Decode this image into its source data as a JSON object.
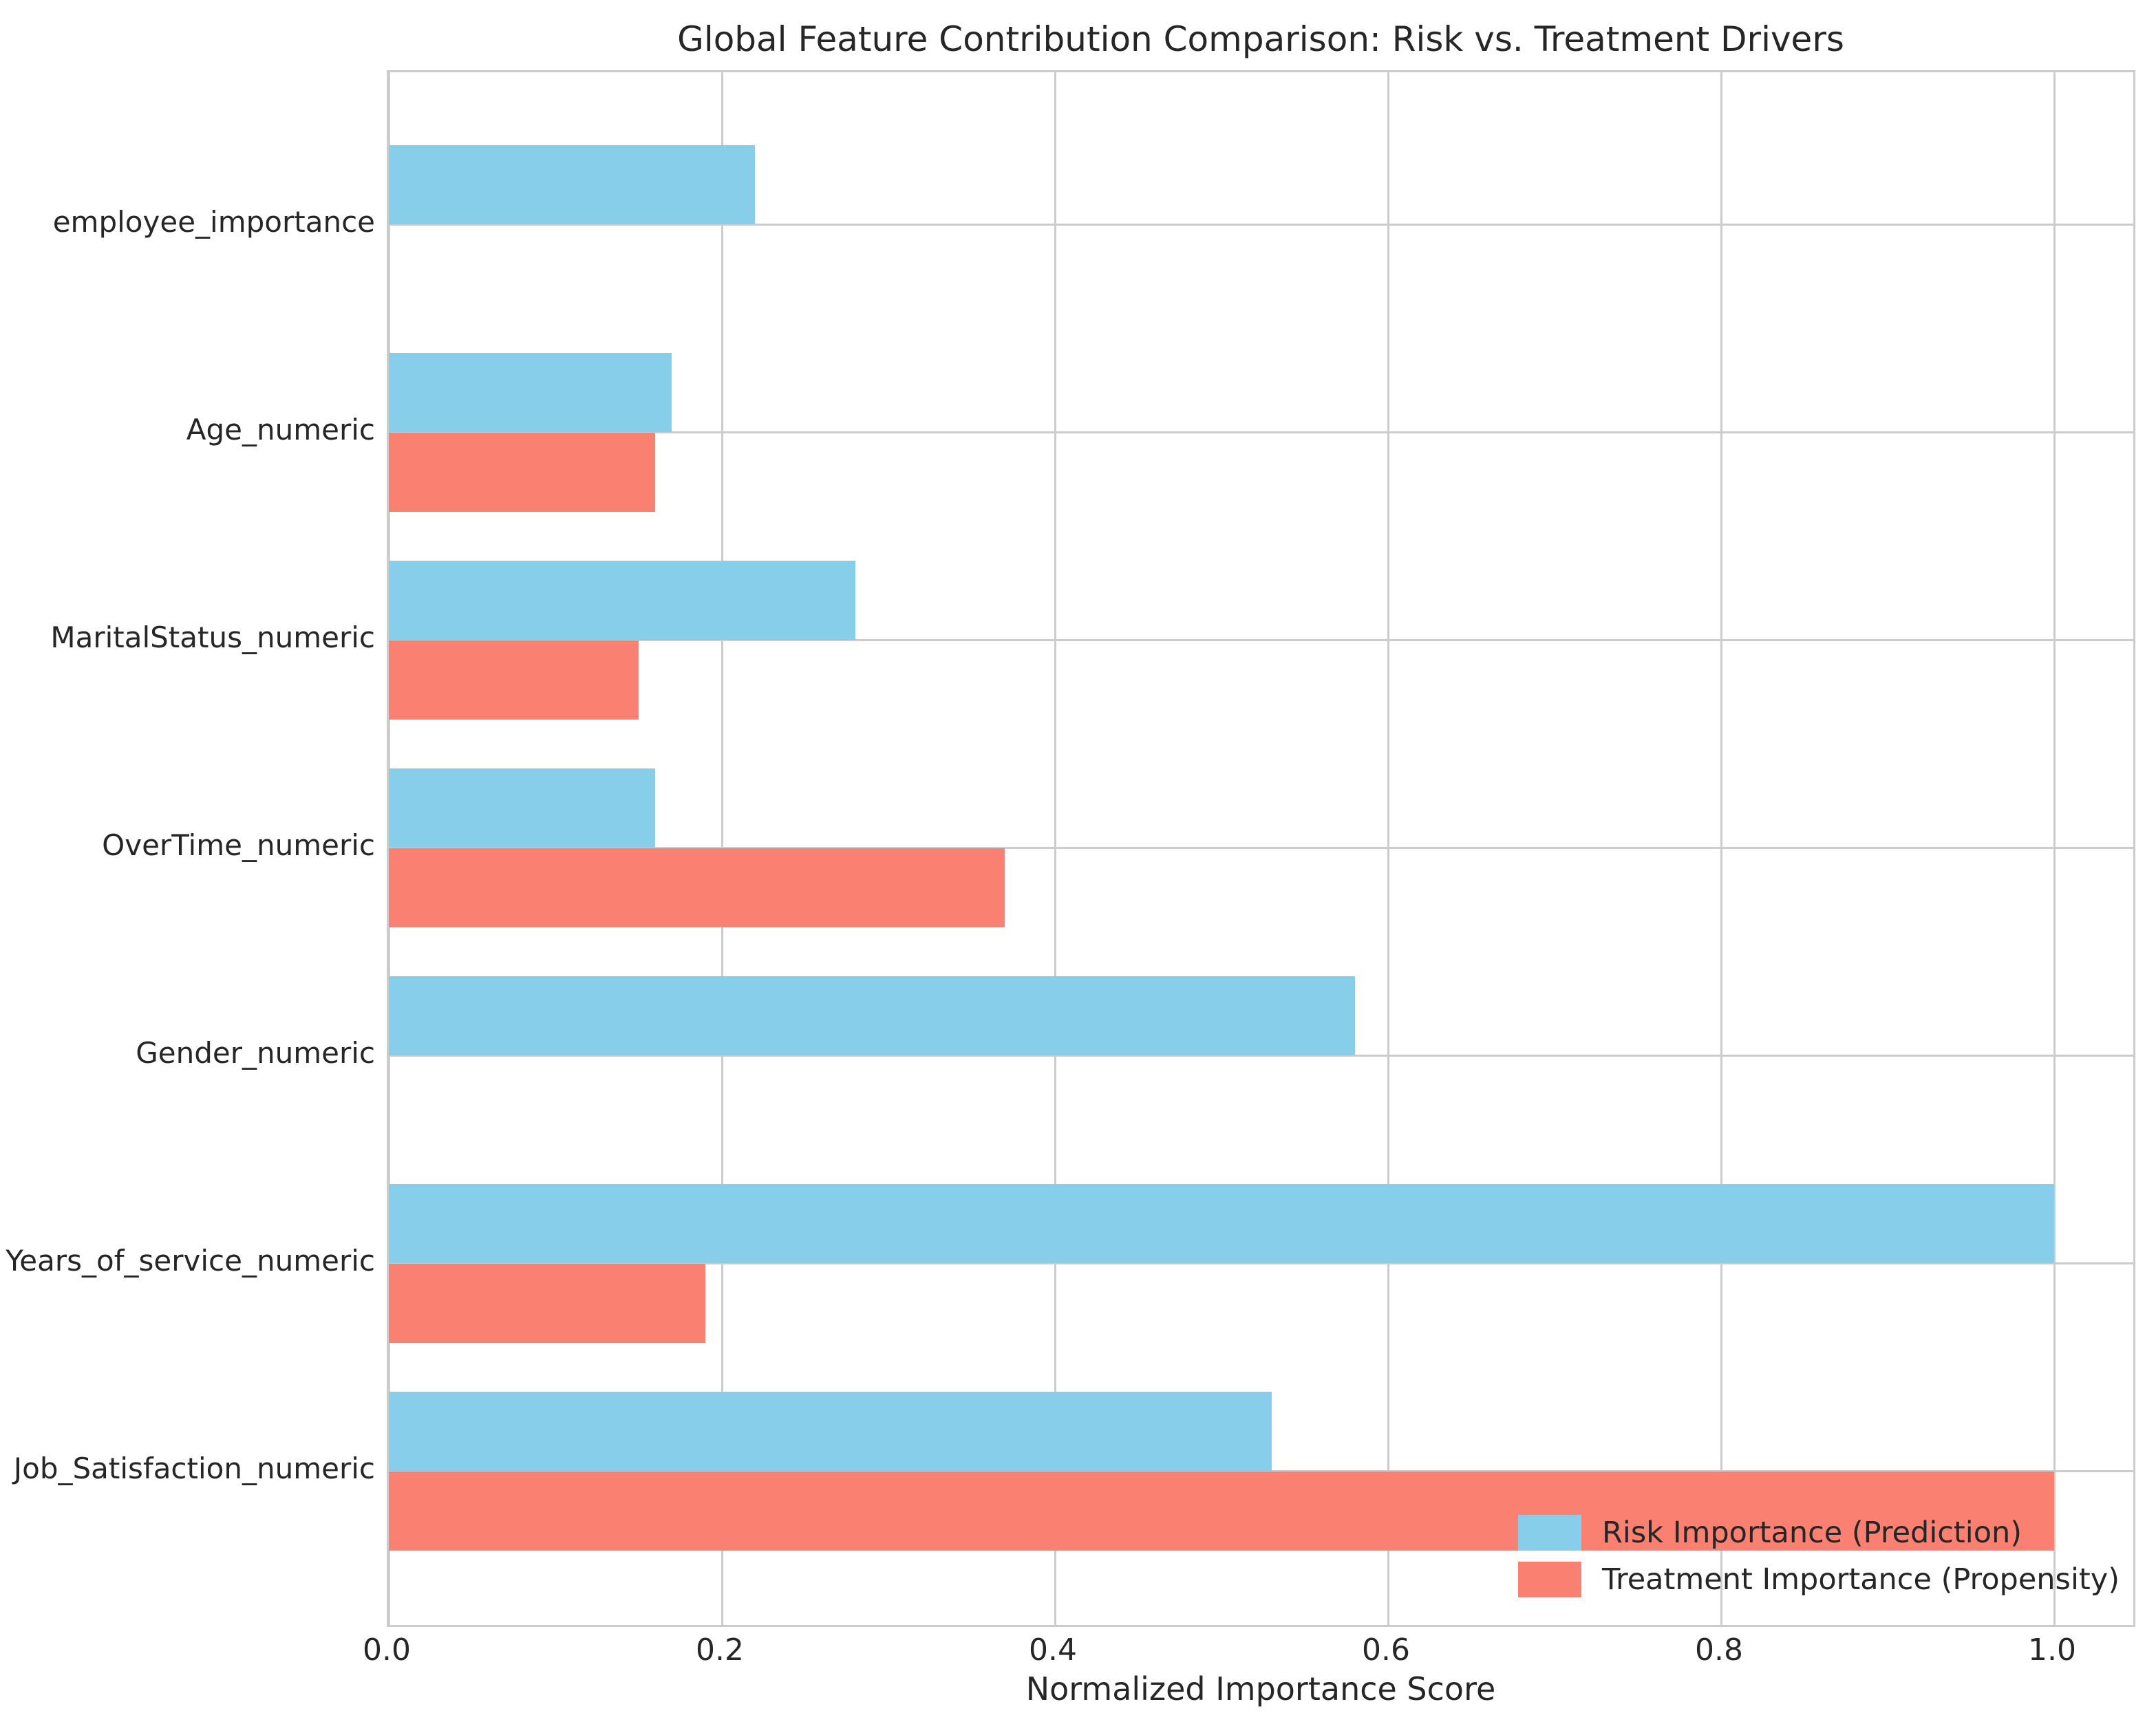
{
  "figure": {
    "background_color": "#ffffff",
    "text_color": "#262626",
    "grid_color": "#cccccc"
  },
  "chart_data": {
    "type": "bar",
    "orientation": "horizontal",
    "title": "Global Feature Contribution Comparison: Risk vs. Treatment Drivers",
    "xlabel": "Normalized Importance Score",
    "ylabel": "",
    "categories": [
      "employee_importance",
      "Age_numeric",
      "MaritalStatus_numeric",
      "OverTime_numeric",
      "Gender_numeric",
      "Years_of_service_numeric",
      "Job_Satisfaction_numeric"
    ],
    "series": [
      {
        "name": "Risk Importance (Prediction)",
        "color": "#87CEEB",
        "values": [
          0.22,
          0.17,
          0.28,
          0.16,
          0.58,
          1.0,
          0.53
        ]
      },
      {
        "name": "Treatment Importance (Propensity)",
        "color": "#FA8072",
        "values": [
          0.0,
          0.16,
          0.15,
          0.37,
          0.0,
          0.19,
          1.0
        ]
      }
    ],
    "x_ticks": [
      0.0,
      0.2,
      0.4,
      0.6,
      0.8,
      1.0
    ],
    "xlim": [
      0,
      1.05
    ],
    "grid": true,
    "legend_position": "lower right",
    "legend_frame": false
  }
}
